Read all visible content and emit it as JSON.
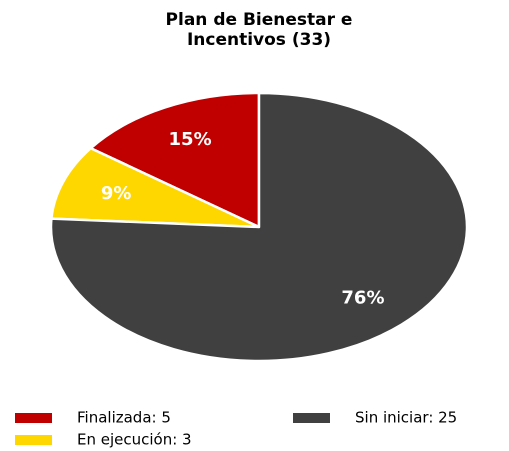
{
  "chart_data": {
    "type": "pie",
    "title": [
      "Plan de Bienestar e",
      "Incentivos (33)"
    ],
    "categories": [
      "Finalizada: 5",
      "En ejecución: 3",
      "Sin iniciar: 25"
    ],
    "values": [
      15,
      9,
      76
    ],
    "value_labels": [
      "15%",
      "9%",
      "76%"
    ],
    "colors": [
      "#c00000",
      "#ffd700",
      "#404040"
    ],
    "legend": "bottom"
  }
}
